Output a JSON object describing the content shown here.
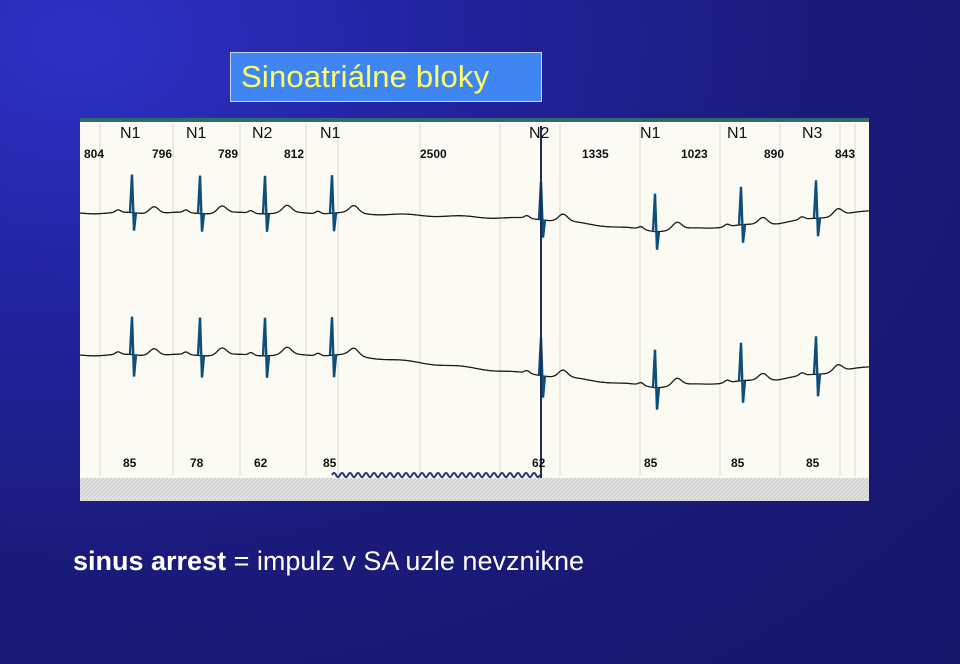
{
  "slide": {
    "title": "Sinoatriálne bloky",
    "caption_term": "sinus arrest",
    "caption_rest": " = impulz v SA uzle nevznikne"
  },
  "ecg": {
    "beat_labels": [
      "N1",
      "N1",
      "N2",
      "N1",
      "N2",
      "N1",
      "N1",
      "N3"
    ],
    "rr_intervals": [
      "804",
      "796",
      "789",
      "812",
      "2500",
      "1335",
      "1023",
      "890",
      "843"
    ],
    "heart_rates": [
      "85",
      "78",
      "62",
      "85",
      "62",
      "85",
      "85",
      "85"
    ],
    "colors": {
      "trace": "#1a1a1a",
      "qrs": "#0e4f7a",
      "marker": "#1e2a5a",
      "grid": "#d9d9cc"
    }
  }
}
